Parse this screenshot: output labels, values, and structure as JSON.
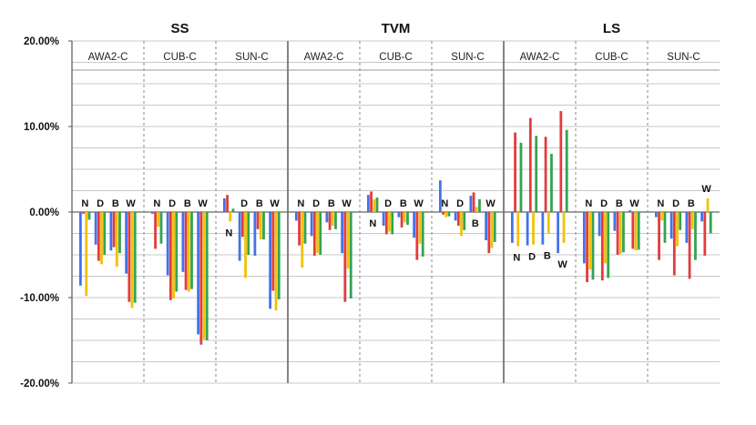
{
  "chart_data": {
    "type": "bar",
    "title": "",
    "xlabel": "",
    "ylabel": "",
    "ylim": [
      -20,
      20
    ],
    "yticks": [
      "20.00%",
      "10.00%",
      "0.00%",
      "-10.00%",
      "-20.00%"
    ],
    "grid": true,
    "groups": [
      "SS",
      "TVM",
      "LS"
    ],
    "categories": [
      "AWA2-C",
      "CUB-C",
      "SUN-C"
    ],
    "variants": [
      "N",
      "D",
      "B",
      "W"
    ],
    "colors": [
      "#4472e8",
      "#e23c3c",
      "#f2c00a",
      "#33a352"
    ],
    "series_order": [
      "blue",
      "red",
      "yellow",
      "green"
    ],
    "values": {
      "SS": {
        "AWA2-C": {
          "N": [
            -8.6,
            -0.2,
            -9.8,
            -0.9
          ],
          "D": [
            -3.8,
            -5.7,
            -6.1,
            -5.0
          ],
          "B": [
            -4.5,
            -4.1,
            -6.4,
            -4.8
          ],
          "W": [
            -7.2,
            -10.5,
            -11.2,
            -10.6
          ]
        },
        "CUB-C": {
          "N": [
            -0.2,
            -4.3,
            -1.7,
            -3.7
          ],
          "D": [
            -7.4,
            -10.3,
            -10.1,
            -9.3
          ],
          "B": [
            -7.0,
            -9.1,
            -9.3,
            -9.0
          ],
          "W": [
            -14.3,
            -15.5,
            -14.9,
            -15.0
          ]
        },
        "SUN-C": {
          "N": [
            1.6,
            2.0,
            -1.1,
            0.4
          ],
          "D": [
            -5.7,
            -2.9,
            -7.7,
            -5.0
          ],
          "B": [
            -5.1,
            -2.0,
            -3.2,
            -3.2
          ],
          "W": [
            -11.3,
            -9.2,
            -11.5,
            -10.2
          ]
        }
      },
      "TVM": {
        "AWA2-C": {
          "N": [
            -1.0,
            -3.9,
            -6.5,
            -3.7
          ],
          "D": [
            -2.8,
            -5.1,
            -4.8,
            -5.0
          ],
          "B": [
            -1.2,
            -2.1,
            -1.6,
            -2.0
          ],
          "W": [
            -4.8,
            -10.5,
            -6.6,
            -10.1
          ]
        },
        "CUB-C": {
          "N": [
            2.0,
            2.4,
            1.5,
            1.7
          ],
          "D": [
            -1.6,
            -2.6,
            -2.3,
            -2.6
          ],
          "B": [
            -0.6,
            -1.8,
            -1.2,
            -1.5
          ],
          "W": [
            -3.0,
            -5.6,
            -3.7,
            -5.2
          ]
        },
        "SUN-C": {
          "N": [
            3.7,
            -0.3,
            -0.6,
            -0.5
          ],
          "D": [
            -1.0,
            -1.6,
            -2.8,
            -2.1
          ],
          "B": [
            1.9,
            2.3,
            0.6,
            1.5
          ],
          "W": [
            -3.3,
            -4.8,
            -4.2,
            -3.5
          ]
        }
      },
      "LS": {
        "AWA2-C": {
          "N": [
            -3.6,
            9.3,
            -4.0,
            8.1
          ],
          "D": [
            -3.9,
            11.0,
            -3.8,
            8.9
          ],
          "B": [
            -3.8,
            8.8,
            -2.5,
            6.8
          ],
          "W": [
            -4.8,
            11.8,
            -3.6,
            9.6
          ]
        },
        "CUB-C": {
          "N": [
            -6.0,
            -8.2,
            -6.7,
            -7.9
          ],
          "D": [
            -2.8,
            -8.0,
            -6.0,
            -7.7
          ],
          "B": [
            -2.2,
            -5.0,
            -4.9,
            -4.7
          ],
          "W": [
            0.2,
            -4.3,
            -4.5,
            -4.4
          ]
        },
        "SUN-C": {
          "N": [
            -0.6,
            -5.6,
            -1.0,
            -3.6
          ],
          "D": [
            -3.1,
            -7.4,
            -4.0,
            -2.1
          ],
          "B": [
            -3.6,
            -7.8,
            -2.0,
            -5.6
          ],
          "W": [
            -1.1,
            -5.1,
            1.6,
            -2.5
          ]
        }
      }
    },
    "label_below": {
      "SS": {
        "SUN-C": [
          "N"
        ]
      },
      "TVM": {
        "CUB-C": [
          "N"
        ],
        "SUN-C": [
          "B"
        ]
      },
      "LS": {
        "AWA2-C": [
          "N",
          "D",
          "B",
          "W"
        ]
      }
    },
    "label_above": {
      "LS": {
        "SUN-C": [
          "W"
        ]
      }
    }
  }
}
